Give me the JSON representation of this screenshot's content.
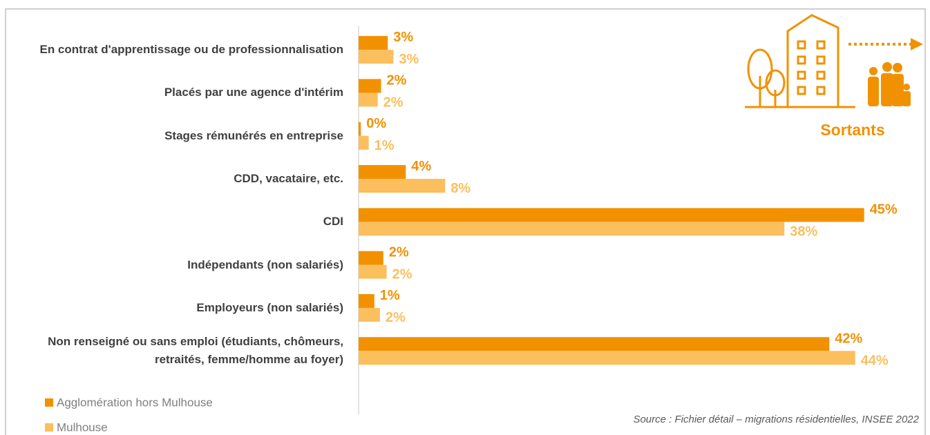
{
  "chart_data": {
    "type": "hbar",
    "categories": [
      "En contrat d'apprentissage ou de professionnalisation",
      "Placés par une agence d'intérim",
      "Stages rémunérés en entreprise",
      "CDD, vacataire, etc.",
      "CDI",
      "Indépendants (non salariés)",
      "Employeurs (non salariés)",
      "Non renseigné ou sans emploi (étudiants, chômeurs, retraités, femme/homme au foyer)"
    ],
    "series": [
      {
        "name": "Agglomération hors Mulhouse",
        "color": "#f29100",
        "values": [
          2.6,
          2.0,
          0.2,
          4.2,
          45.0,
          2.2,
          1.4,
          41.9
        ],
        "value_labels": [
          "3%",
          "2%",
          "0%",
          "4%",
          "45%",
          "2%",
          "1%",
          "42%"
        ]
      },
      {
        "name": "Mulhouse",
        "color": "#fbbf5e",
        "values": [
          3.1,
          1.7,
          0.9,
          7.7,
          37.9,
          2.5,
          1.9,
          44.2
        ],
        "value_labels": [
          "3%",
          "2%",
          "1%",
          "8%",
          "38%",
          "2%",
          "2%",
          "44%"
        ]
      }
    ],
    "xlim": [
      0,
      50
    ],
    "annotation": "Sortants",
    "source": "Source : Fichier détail – migrations résidentielles, INSEE 2022"
  }
}
